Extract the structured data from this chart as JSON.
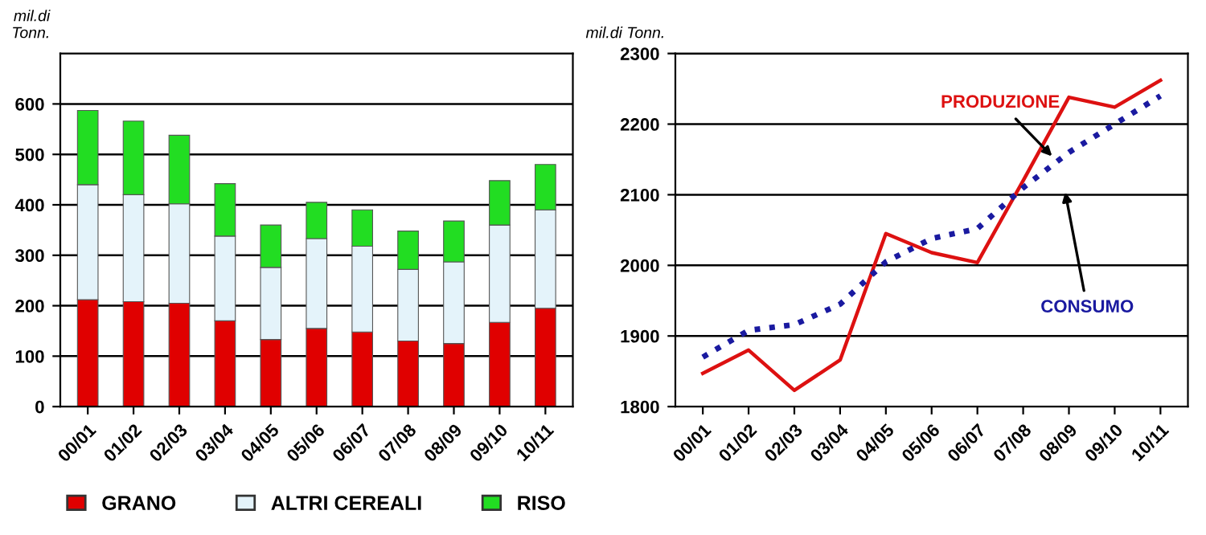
{
  "chart_data": [
    {
      "type": "bar",
      "stacked": true,
      "ylabel": "mil.di\nTonn.",
      "categories": [
        "00/01",
        "01/02",
        "02/03",
        "03/04",
        "04/05",
        "05/06",
        "06/07",
        "07/08",
        "08/09",
        "09/10",
        "10/11"
      ],
      "series": [
        {
          "name": "GRANO",
          "color": "#e00000",
          "values": [
            212,
            208,
            205,
            170,
            133,
            155,
            148,
            130,
            125,
            167,
            195
          ]
        },
        {
          "name": "ALTRI CEREALI",
          "color": "#e4f3fa",
          "values": [
            228,
            212,
            197,
            168,
            143,
            178,
            170,
            142,
            162,
            193,
            195
          ]
        },
        {
          "name": "RISO",
          "color": "#22dd22",
          "values": [
            147,
            146,
            136,
            104,
            84,
            72,
            72,
            76,
            81,
            88,
            90
          ]
        }
      ],
      "ylim": [
        0,
        700
      ],
      "yticks": [
        0,
        100,
        200,
        300,
        400,
        500,
        600
      ],
      "grid": "y",
      "legend": "bottom"
    },
    {
      "type": "line",
      "ylabel": "mil.di Tonn.",
      "categories": [
        "00/01",
        "01/02",
        "02/03",
        "03/04",
        "04/05",
        "05/06",
        "06/07",
        "07/08",
        "08/09",
        "09/10",
        "10/11"
      ],
      "series": [
        {
          "name": "PRODUZIONE",
          "color": "#dd1111",
          "line_style": "solid",
          "values": [
            1847,
            1880,
            1823,
            1866,
            2045,
            2018,
            2004,
            2120,
            2238,
            2224,
            2262
          ]
        },
        {
          "name": "CONSUMO",
          "color": "#1a1aa0",
          "line_style": "dotted",
          "values": [
            1870,
            1908,
            1916,
            1945,
            2005,
            2038,
            2052,
            2110,
            2160,
            2200,
            2240
          ]
        }
      ],
      "ylim": [
        1800,
        2300
      ],
      "yticks": [
        1800,
        1900,
        2000,
        2100,
        2200,
        2300
      ],
      "grid": "y",
      "legend": false
    }
  ]
}
